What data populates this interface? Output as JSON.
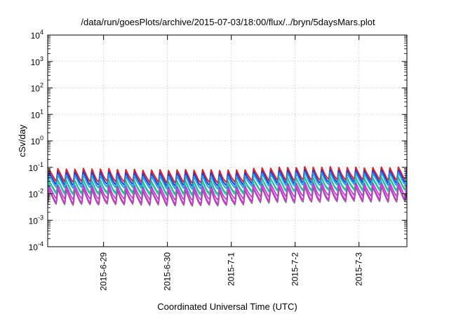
{
  "chart_data": {
    "type": "line",
    "title": "/data/run/goesPlots/archive/2015-07-03/18:00/flux/../bryn/5daysMars.plot",
    "xlabel": "Coordinated Universal Time (UTC)",
    "ylabel": "cSv/day",
    "y_scale": "log",
    "ylim": [
      0.0001,
      10000
    ],
    "y_ticks": [
      {
        "value": 0.0001,
        "base": "10",
        "exp": "-4"
      },
      {
        "value": 0.001,
        "base": "10",
        "exp": "-3"
      },
      {
        "value": 0.01,
        "base": "10",
        "exp": "-2"
      },
      {
        "value": 0.1,
        "base": "10",
        "exp": "-1"
      },
      {
        "value": 1,
        "base": "10",
        "exp": "0"
      },
      {
        "value": 10,
        "base": "10",
        "exp": "1"
      },
      {
        "value": 100,
        "base": "10",
        "exp": "2"
      },
      {
        "value": 1000,
        "base": "10",
        "exp": "3"
      },
      {
        "value": 10000,
        "base": "10",
        "exp": "4"
      }
    ],
    "xlim": [
      "2015-06-28T03:00",
      "2015-07-03T18:00"
    ],
    "x_ticks": [
      {
        "value": "2015-06-29T00:00",
        "label": "2015-6-29"
      },
      {
        "value": "2015-06-30T00:00",
        "label": "2015-6-30"
      },
      {
        "value": "2015-07-01T00:00",
        "label": "2015-7-1"
      },
      {
        "value": "2015-07-02T00:00",
        "label": "2015-7-2"
      },
      {
        "value": "2015-07-03T00:00",
        "label": "2015-7-3"
      }
    ],
    "grid": true,
    "pattern": {
      "period_hours": 3.2,
      "rise_fraction": 0.18,
      "note_color_order": "top to bottom"
    },
    "series": [
      {
        "color": "#e8202a",
        "width": 2.0,
        "base_levels": {
          "2015-06-28T03:00": 0.058,
          "2015-07-01T00:00": 0.05,
          "2015-07-01T12:00": 0.064,
          "2015-07-03T18:00": 0.066
        },
        "peak_ratio": 1.55,
        "trough_ratio": 0.52
      },
      {
        "color": "#2040d0",
        "width": 2.0,
        "base_levels": {
          "2015-06-28T03:00": 0.046,
          "2015-07-01T00:00": 0.04,
          "2015-07-01T12:00": 0.052,
          "2015-07-03T18:00": 0.054
        },
        "peak_ratio": 1.5,
        "trough_ratio": 0.5
      },
      {
        "color": "#20a0e8",
        "width": 2.0,
        "base_levels": {
          "2015-06-28T03:00": 0.036,
          "2015-07-01T00:00": 0.031,
          "2015-07-01T12:00": 0.042,
          "2015-07-03T18:00": 0.044
        },
        "peak_ratio": 1.45,
        "trough_ratio": 0.5
      },
      {
        "color": "#20b060",
        "width": 1.6,
        "base_levels": {
          "2015-06-28T03:00": 0.024,
          "2015-07-01T00:00": 0.021,
          "2015-07-01T12:00": 0.029,
          "2015-07-03T18:00": 0.031
        },
        "peak_ratio": 1.4,
        "trough_ratio": 0.48
      },
      {
        "color": "#30c8c0",
        "width": 1.6,
        "base_levels": {
          "2015-06-28T03:00": 0.021,
          "2015-07-01T00:00": 0.018,
          "2015-07-01T12:00": 0.026,
          "2015-07-03T18:00": 0.027
        },
        "peak_ratio": 1.4,
        "trough_ratio": 0.48
      },
      {
        "color": "#a040c0",
        "width": 1.6,
        "base_levels": {
          "2015-06-28T03:00": 0.015,
          "2015-07-01T00:00": 0.013,
          "2015-07-01T12:00": 0.018,
          "2015-07-03T18:00": 0.019
        },
        "peak_ratio": 1.45,
        "trough_ratio": 0.45
      },
      {
        "color": "#ff20ff",
        "width": 2.2,
        "base_levels": {
          "2015-06-28T03:00": 0.011,
          "2015-07-01T00:00": 0.0095,
          "2015-07-01T12:00": 0.013,
          "2015-07-03T18:00": 0.014
        },
        "peak_ratio": 1.5,
        "trough_ratio": 0.42
      },
      {
        "color": "#707070",
        "width": 1.2,
        "base_levels": {
          "2015-06-28T03:00": 0.0095,
          "2015-07-01T00:00": 0.0082,
          "2015-07-01T12:00": 0.011,
          "2015-07-03T18:00": 0.012
        },
        "peak_ratio": 1.5,
        "trough_ratio": 0.42
      }
    ]
  }
}
